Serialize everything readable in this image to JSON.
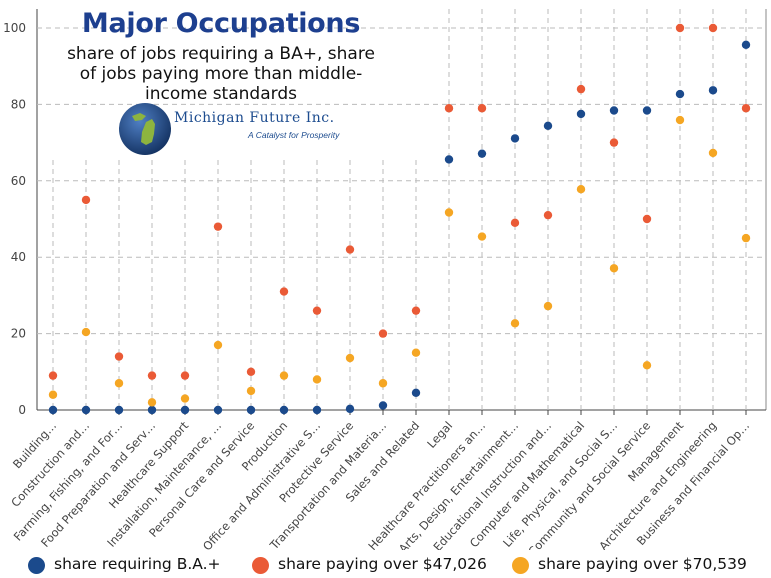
{
  "chart_data": {
    "type": "scatter",
    "title": "Major Occupations",
    "subtitle": "share of jobs requiring a BA+, share of jobs paying more than middle-income standards",
    "xlabel": "",
    "ylabel": "",
    "ylim": [
      0,
      105
    ],
    "yticks": [
      0,
      20,
      40,
      60,
      80,
      100
    ],
    "grid": true,
    "legend_position": "bottom",
    "categories": [
      "Building…",
      "Construction and…",
      "Farming, Fishing, and For…",
      "Food Preparation and Serv…",
      "Healthcare Support",
      "Installation, Maintenance, …",
      "Personal Care and Service",
      "Production",
      "Office and Administrative S…",
      "Protective Service",
      "Transportation and Materia…",
      "Sales and Related",
      "Legal",
      "Healthcare Practitioners an…",
      "Arts, Design, Entertainment…",
      "Educational Instruction and…",
      "Computer and Mathematical",
      "Life, Physical, and Social S…",
      "Community and Social Service",
      "Management",
      "Architecture and Engineering",
      "Business and Financial Op…"
    ],
    "series": [
      {
        "name": "share requiring B.A.+",
        "color": "#1b4a8c",
        "values": [
          0,
          0,
          0,
          0,
          0,
          0,
          0,
          0,
          0,
          0.3,
          1.2,
          4.5,
          65.6,
          67.1,
          71.1,
          74.4,
          77.5,
          78.4,
          78.4,
          82.7,
          83.7,
          95.6
        ]
      },
      {
        "name": "share paying over $47,026",
        "color": "#ea5a36",
        "values": [
          9,
          55,
          14,
          9,
          9,
          48,
          10,
          31,
          26,
          42,
          20,
          26,
          79,
          79,
          49,
          51,
          84,
          70,
          50,
          100,
          100,
          79
        ]
      },
      {
        "name": "share paying over $70,539",
        "color": "#f5a623",
        "values": [
          4,
          20.4,
          7,
          2,
          3,
          17,
          5,
          9,
          8,
          13.6,
          7,
          15,
          51.7,
          45.4,
          22.7,
          27.2,
          57.8,
          37.1,
          11.7,
          75.9,
          67.3,
          45
        ]
      }
    ]
  },
  "logo": {
    "name": "Michigan Future Inc.",
    "tagline": "A Catalyst for Prosperity"
  }
}
